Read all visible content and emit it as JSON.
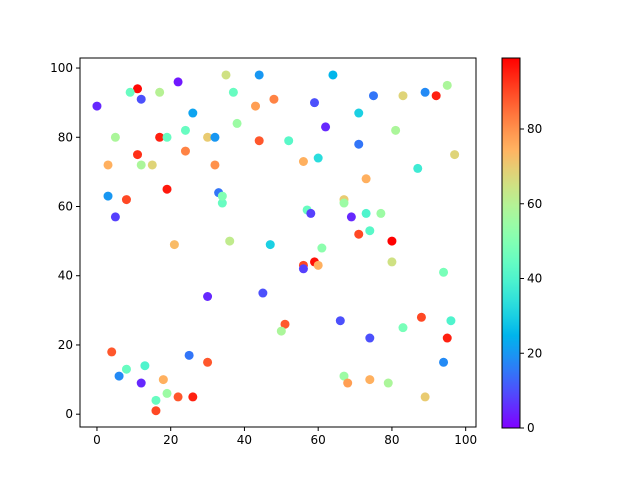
{
  "chart_data": {
    "type": "scatter",
    "title": "",
    "xlabel": "",
    "ylabel": "",
    "xlim": [
      -4.6,
      102.8
    ],
    "ylim": [
      -3.7,
      102.9
    ],
    "xticks": [
      0,
      20,
      40,
      60,
      80,
      100
    ],
    "yticks": [
      0,
      20,
      40,
      60,
      80,
      100
    ],
    "grid": false,
    "colormap": "rainbow",
    "colorbar": {
      "range": [
        0,
        99
      ],
      "ticks": [
        0,
        20,
        40,
        60,
        80
      ],
      "placement": "right"
    },
    "points": [
      [
        0,
        89,
        5
      ],
      [
        11,
        94,
        98
      ],
      [
        12,
        91,
        10
      ],
      [
        9,
        93,
        45
      ],
      [
        22,
        96,
        3
      ],
      [
        17,
        93,
        60
      ],
      [
        35,
        98,
        65
      ],
      [
        44,
        98,
        20
      ],
      [
        64,
        98,
        25
      ],
      [
        95,
        95,
        58
      ],
      [
        92,
        92,
        95
      ],
      [
        89,
        93,
        18
      ],
      [
        83,
        92,
        68
      ],
      [
        75,
        92,
        15
      ],
      [
        59,
        90,
        10
      ],
      [
        48,
        91,
        82
      ],
      [
        43,
        89,
        78
      ],
      [
        37,
        93,
        45
      ],
      [
        26,
        87,
        22
      ],
      [
        71,
        87,
        30
      ],
      [
        5,
        80,
        58
      ],
      [
        17,
        80,
        95
      ],
      [
        19,
        80,
        45
      ],
      [
        24,
        82,
        45
      ],
      [
        30,
        80,
        70
      ],
      [
        32,
        80,
        20
      ],
      [
        38,
        84,
        55
      ],
      [
        52,
        79,
        42
      ],
      [
        44,
        79,
        88
      ],
      [
        62,
        83,
        5
      ],
      [
        71,
        78,
        15
      ],
      [
        81,
        82,
        58
      ],
      [
        97,
        75,
        68
      ],
      [
        60,
        74,
        33
      ],
      [
        56,
        73,
        75
      ],
      [
        73,
        68,
        75
      ],
      [
        87,
        71,
        37
      ],
      [
        3,
        72,
        75
      ],
      [
        11,
        75,
        93
      ],
      [
        12,
        72,
        58
      ],
      [
        15,
        72,
        68
      ],
      [
        24,
        76,
        82
      ],
      [
        32,
        72,
        80
      ],
      [
        3,
        63,
        20
      ],
      [
        8,
        62,
        90
      ],
      [
        5,
        57,
        8
      ],
      [
        19,
        65,
        96
      ],
      [
        33,
        64,
        15
      ],
      [
        34,
        61,
        45
      ],
      [
        34,
        63,
        50
      ],
      [
        36,
        50,
        62
      ],
      [
        21,
        49,
        73
      ],
      [
        47,
        49,
        30
      ],
      [
        57,
        59,
        45
      ],
      [
        58,
        58,
        8
      ],
      [
        67,
        62,
        70
      ],
      [
        67,
        61,
        55
      ],
      [
        69,
        57,
        5
      ],
      [
        73,
        58,
        40
      ],
      [
        77,
        58,
        55
      ],
      [
        74,
        53,
        42
      ],
      [
        71,
        52,
        90
      ],
      [
        61,
        48,
        52
      ],
      [
        80,
        50,
        99
      ],
      [
        80,
        44,
        65
      ],
      [
        59,
        44,
        97
      ],
      [
        60,
        43,
        75
      ],
      [
        56,
        43,
        90
      ],
      [
        56,
        42,
        8
      ],
      [
        94,
        41,
        48
      ],
      [
        30,
        34,
        5
      ],
      [
        45,
        35,
        10
      ],
      [
        51,
        26,
        88
      ],
      [
        50,
        24,
        58
      ],
      [
        66,
        27,
        10
      ],
      [
        88,
        28,
        90
      ],
      [
        96,
        27,
        40
      ],
      [
        83,
        25,
        48
      ],
      [
        74,
        22,
        10
      ],
      [
        95,
        22,
        95
      ],
      [
        94,
        15,
        18
      ],
      [
        4,
        18,
        88
      ],
      [
        6,
        11,
        18
      ],
      [
        8,
        13,
        45
      ],
      [
        13,
        14,
        40
      ],
      [
        25,
        17,
        15
      ],
      [
        30,
        15,
        88
      ],
      [
        12,
        9,
        5
      ],
      [
        18,
        10,
        75
      ],
      [
        19,
        6,
        55
      ],
      [
        16,
        4,
        45
      ],
      [
        16,
        1,
        90
      ],
      [
        22,
        5,
        88
      ],
      [
        26,
        5,
        95
      ],
      [
        67,
        11,
        55
      ],
      [
        68,
        9,
        78
      ],
      [
        74,
        10,
        75
      ],
      [
        79,
        9,
        58
      ],
      [
        89,
        5,
        70
      ]
    ]
  }
}
